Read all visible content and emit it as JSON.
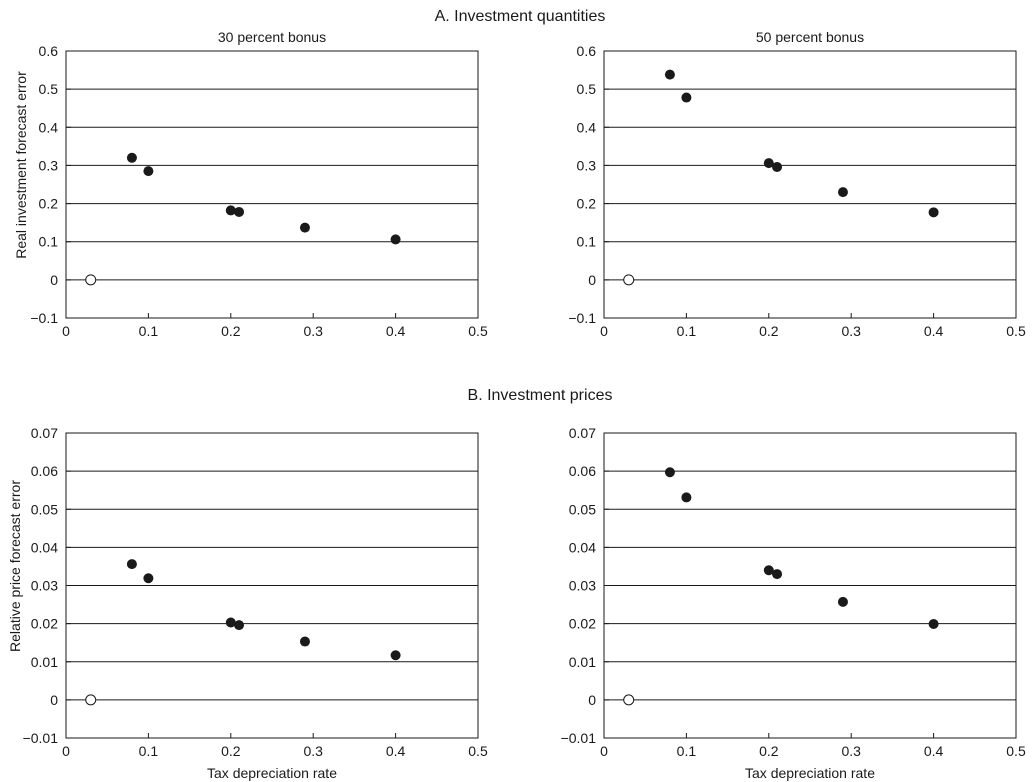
{
  "panels": {
    "a_title": "A. Investment quantities",
    "b_title": "B. Investment prices"
  },
  "subplot_titles": {
    "left": "30 percent bonus",
    "right": "50 percent bonus"
  },
  "axis_labels": {
    "top_ylabel": "Real investment forecast error",
    "bottom_ylabel": "Relative price forecast error",
    "bottom_left_xlabel": "Tax depreciation rate",
    "bottom_right_xlabel": "Tax depreciation rate"
  },
  "chart_data": [
    {
      "type": "scatter",
      "panel": "A. Investment quantities",
      "title": "30 percent bonus",
      "xlabel": "",
      "ylabel": "Real investment forecast error",
      "xlim": [
        0,
        0.5
      ],
      "ylim": [
        -0.1,
        0.6
      ],
      "xticks": [
        0,
        0.1,
        0.2,
        0.3,
        0.4,
        0.5
      ],
      "xtick_labels": [
        "0",
        "0.1",
        "0.2",
        "0.3",
        "0.4",
        "0.5"
      ],
      "yticks": [
        -0.1,
        0,
        0.1,
        0.2,
        0.3,
        0.4,
        0.5,
        0.6
      ],
      "ytick_labels": [
        "−0.1",
        "0",
        "0.1",
        "0.2",
        "0.3",
        "0.4",
        "0.5",
        "0.6"
      ],
      "grid": "horizontal",
      "series": [
        {
          "marker": "filled",
          "x": [
            0.08,
            0.1,
            0.2,
            0.21,
            0.29,
            0.4
          ],
          "y": [
            0.32,
            0.285,
            0.182,
            0.178,
            0.137,
            0.106
          ]
        },
        {
          "marker": "open",
          "x": [
            0.03
          ],
          "y": [
            0
          ]
        }
      ]
    },
    {
      "type": "scatter",
      "panel": "A. Investment quantities",
      "title": "50 percent bonus",
      "xlabel": "",
      "ylabel": "",
      "xlim": [
        0,
        0.5
      ],
      "ylim": [
        -0.1,
        0.6
      ],
      "xticks": [
        0,
        0.1,
        0.2,
        0.3,
        0.4,
        0.5
      ],
      "xtick_labels": [
        "0",
        "0.1",
        "0.2",
        "0.3",
        "0.4",
        "0.5"
      ],
      "yticks": [
        -0.1,
        0,
        0.1,
        0.2,
        0.3,
        0.4,
        0.5,
        0.6
      ],
      "ytick_labels": [
        "−0.1",
        "0",
        "0.1",
        "0.2",
        "0.3",
        "0.4",
        "0.5",
        "0.6"
      ],
      "grid": "horizontal",
      "series": [
        {
          "marker": "filled",
          "x": [
            0.08,
            0.1,
            0.2,
            0.21,
            0.29,
            0.4
          ],
          "y": [
            0.538,
            0.478,
            0.306,
            0.296,
            0.23,
            0.177
          ]
        },
        {
          "marker": "open",
          "x": [
            0.03
          ],
          "y": [
            0
          ]
        }
      ]
    },
    {
      "type": "scatter",
      "panel": "B. Investment prices",
      "title": "",
      "xlabel": "Tax depreciation rate",
      "ylabel": "Relative price forecast error",
      "xlim": [
        0,
        0.5
      ],
      "ylim": [
        -0.01,
        0.07
      ],
      "xticks": [
        0,
        0.1,
        0.2,
        0.3,
        0.4,
        0.5
      ],
      "xtick_labels": [
        "0",
        "0.1",
        "0.2",
        "0.3",
        "0.4",
        "0.5"
      ],
      "yticks": [
        -0.01,
        0,
        0.01,
        0.02,
        0.03,
        0.04,
        0.05,
        0.06,
        0.07
      ],
      "ytick_labels": [
        "−0.01",
        "0",
        "0.01",
        "0.02",
        "0.03",
        "0.04",
        "0.05",
        "0.06",
        "0.07"
      ],
      "grid": "horizontal",
      "series": [
        {
          "marker": "filled",
          "x": [
            0.08,
            0.1,
            0.2,
            0.21,
            0.29,
            0.4
          ],
          "y": [
            0.0356,
            0.0319,
            0.0203,
            0.0196,
            0.0153,
            0.0117
          ]
        },
        {
          "marker": "open",
          "x": [
            0.03
          ],
          "y": [
            0
          ]
        }
      ]
    },
    {
      "type": "scatter",
      "panel": "B. Investment prices",
      "title": "",
      "xlabel": "Tax depreciation rate",
      "ylabel": "",
      "xlim": [
        0,
        0.5
      ],
      "ylim": [
        -0.01,
        0.07
      ],
      "xticks": [
        0,
        0.1,
        0.2,
        0.3,
        0.4,
        0.5
      ],
      "xtick_labels": [
        "0",
        "0.1",
        "0.2",
        "0.3",
        "0.4",
        "0.5"
      ],
      "yticks": [
        -0.01,
        0,
        0.01,
        0.02,
        0.03,
        0.04,
        0.05,
        0.06,
        0.07
      ],
      "ytick_labels": [
        "−0.01",
        "0",
        "0.01",
        "0.02",
        "0.03",
        "0.04",
        "0.05",
        "0.06",
        "0.07"
      ],
      "grid": "horizontal",
      "series": [
        {
          "marker": "filled",
          "x": [
            0.08,
            0.1,
            0.2,
            0.21,
            0.29,
            0.4
          ],
          "y": [
            0.0597,
            0.0531,
            0.034,
            0.033,
            0.0257,
            0.0199
          ]
        },
        {
          "marker": "open",
          "x": [
            0.03
          ],
          "y": [
            0
          ]
        }
      ]
    }
  ],
  "colors": {
    "ink": "#1a1a1a",
    "background": "#ffffff",
    "open_marker_fill": "#ffffff"
  }
}
